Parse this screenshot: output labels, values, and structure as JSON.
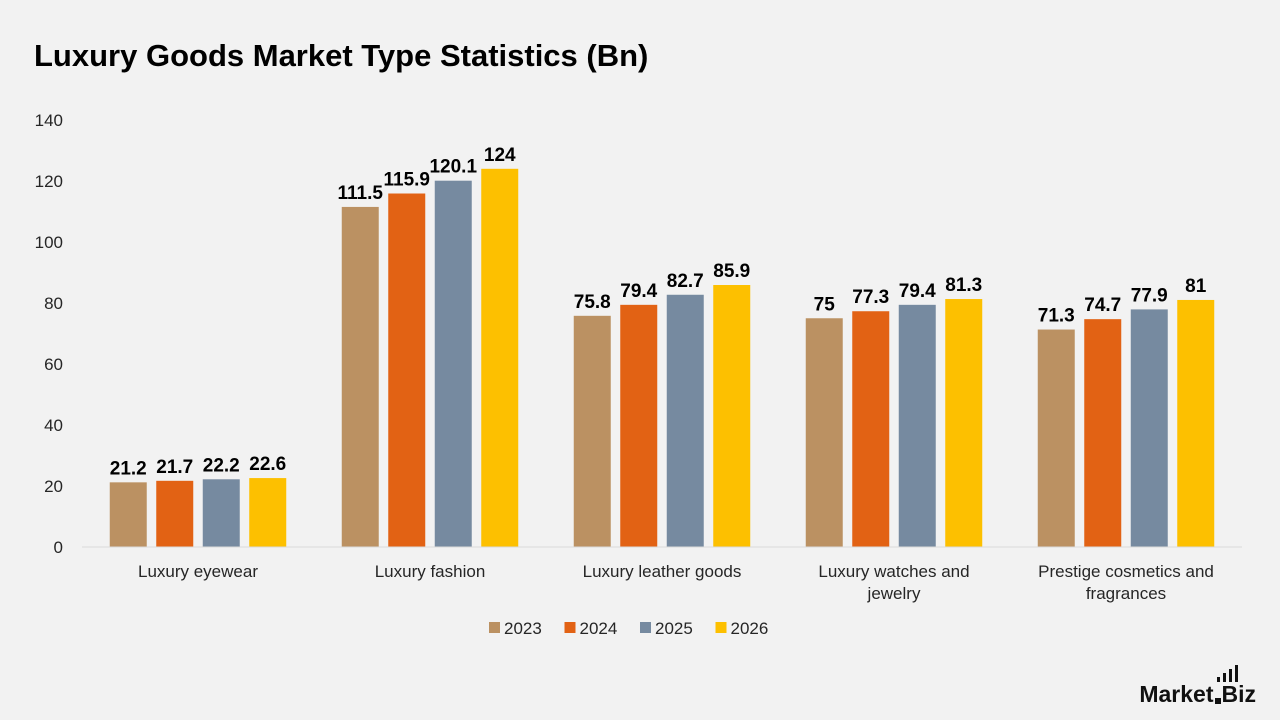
{
  "chart_data": {
    "type": "bar",
    "title": "Luxury Goods Market Type Statistics (Bn)",
    "categories": [
      [
        "Luxury eyewear"
      ],
      [
        "Luxury fashion"
      ],
      [
        "Luxury leather goods"
      ],
      [
        "Luxury watches and",
        "jewelry"
      ],
      [
        "Prestige cosmetics and",
        "fragrances"
      ]
    ],
    "series": [
      {
        "name": "2023",
        "color": "#bb9162",
        "values": [
          21.2,
          111.5,
          75.8,
          75,
          71.3
        ]
      },
      {
        "name": "2024",
        "color": "#e26214",
        "values": [
          21.7,
          115.9,
          79.4,
          77.3,
          74.7
        ]
      },
      {
        "name": "2025",
        "color": "#768aa0",
        "values": [
          22.2,
          120.1,
          82.7,
          79.4,
          77.9
        ]
      },
      {
        "name": "2026",
        "color": "#fdc000",
        "values": [
          22.6,
          124,
          85.9,
          81.3,
          81
        ]
      }
    ],
    "ylim": [
      0,
      140
    ],
    "yticks": [
      0,
      20,
      40,
      60,
      80,
      100,
      120,
      140
    ],
    "grid": false,
    "legend": "bottom",
    "xlabel": "",
    "ylabel": ""
  },
  "brand": {
    "name_a": "Market",
    "name_b": "Biz"
  }
}
